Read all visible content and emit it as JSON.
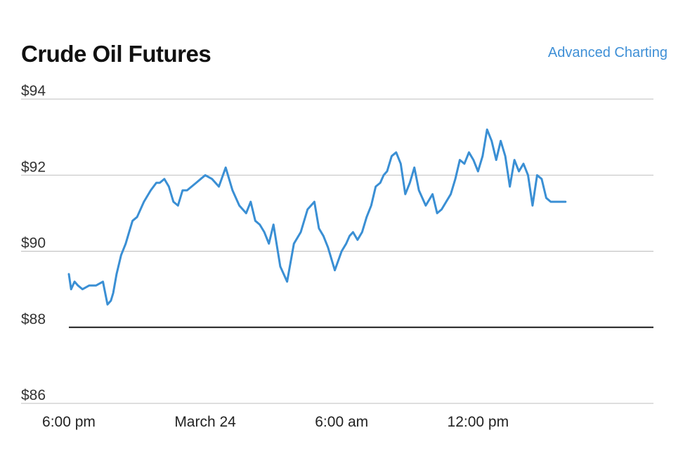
{
  "header": {
    "title": "Crude Oil Futures",
    "advanced_link": "Advanced Charting"
  },
  "colors": {
    "line": "#3a8fd4",
    "grid": "#bdbdbd",
    "baseline": "#1a1a1a",
    "link": "#3e8fd6"
  },
  "chart_data": {
    "type": "line",
    "title": "Crude Oil Futures",
    "xlabel": "",
    "ylabel": "",
    "ylim": [
      86,
      94
    ],
    "xlim": [
      0,
      26.5
    ],
    "x_unit": "hours since 6:00 pm",
    "grid": true,
    "reference_line": 88,
    "y_ticks": [
      {
        "value": 94,
        "label": "$94"
      },
      {
        "value": 92,
        "label": "$92"
      },
      {
        "value": 90,
        "label": "$90"
      },
      {
        "value": 88,
        "label": "$88"
      },
      {
        "value": 86,
        "label": "$86"
      }
    ],
    "x_ticks": [
      {
        "value": 0,
        "label": "6:00 pm"
      },
      {
        "value": 6,
        "label": "March 24"
      },
      {
        "value": 12,
        "label": "6:00 am"
      },
      {
        "value": 18,
        "label": "12:00 pm"
      }
    ],
    "series": [
      {
        "x": [
          0.0,
          0.1,
          0.25,
          0.4,
          0.6,
          0.9,
          1.2,
          1.5,
          1.7,
          1.85,
          1.95,
          2.1,
          2.3,
          2.5,
          2.65,
          2.8,
          3.0,
          3.3,
          3.6,
          3.85,
          4.0,
          4.2,
          4.4,
          4.6,
          4.8,
          5.0,
          5.2,
          5.4,
          5.6,
          5.8,
          6.0,
          6.3,
          6.6,
          6.9,
          7.2,
          7.5,
          7.8,
          8.0,
          8.2,
          8.4,
          8.6,
          8.8,
          9.0,
          9.3,
          9.6,
          9.9,
          10.2,
          10.5,
          10.8,
          11.0,
          11.2,
          11.4,
          11.7,
          12.0,
          12.2,
          12.35,
          12.5,
          12.7,
          12.9,
          13.1,
          13.3,
          13.5,
          13.7,
          13.85,
          14.0,
          14.2,
          14.4,
          14.6,
          14.8,
          15.0,
          15.2,
          15.4,
          15.7,
          16.0,
          16.2,
          16.4,
          16.6,
          16.8,
          17.0,
          17.2,
          17.4,
          17.6,
          17.8,
          18.0,
          18.2,
          18.4,
          18.6,
          18.8,
          19.0,
          19.2,
          19.4,
          19.6,
          19.8,
          20.0,
          20.2,
          20.4,
          20.6,
          20.8,
          21.0,
          21.2,
          21.4,
          21.6,
          21.85
        ],
        "y": [
          89.4,
          89.0,
          89.2,
          89.1,
          89.0,
          89.1,
          89.1,
          89.2,
          88.6,
          88.7,
          88.9,
          89.4,
          89.9,
          90.2,
          90.5,
          90.8,
          90.9,
          91.3,
          91.6,
          91.8,
          91.8,
          91.9,
          91.7,
          91.3,
          91.2,
          91.6,
          91.6,
          91.7,
          91.8,
          91.9,
          92.0,
          91.9,
          91.7,
          92.2,
          91.6,
          91.2,
          91.0,
          91.3,
          90.8,
          90.7,
          90.5,
          90.2,
          90.7,
          89.6,
          89.2,
          90.2,
          90.5,
          91.1,
          91.3,
          90.6,
          90.4,
          90.1,
          89.5,
          90.0,
          90.2,
          90.4,
          90.5,
          90.3,
          90.5,
          90.9,
          91.2,
          91.7,
          91.8,
          92.0,
          92.1,
          92.5,
          92.6,
          92.3,
          91.5,
          91.8,
          92.2,
          91.6,
          91.2,
          91.5,
          91.0,
          91.1,
          91.3,
          91.5,
          91.9,
          92.4,
          92.3,
          92.6,
          92.4,
          92.1,
          92.5,
          93.2,
          92.9,
          92.4,
          92.9,
          92.5,
          91.7,
          92.4,
          92.1,
          92.3,
          92.0,
          91.2,
          92.0,
          91.9,
          91.4,
          91.3,
          91.3,
          91.3,
          91.3
        ]
      }
    ]
  }
}
